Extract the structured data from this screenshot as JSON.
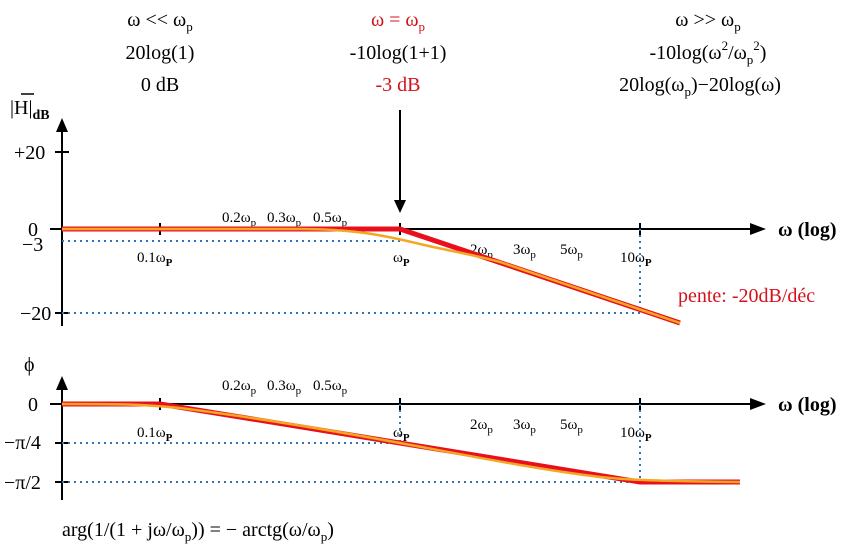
{
  "header": {
    "left": {
      "line1": "ω << ω",
      "line1_sub": "p",
      "line2": "20log(1)",
      "line3": "0 dB"
    },
    "mid": {
      "line1": "ω = ω",
      "line1_sub": "p",
      "line2": "-10log(1+1)",
      "line3": "-3 dB"
    },
    "right": {
      "line1": "ω >> ω",
      "line1_sub": "p",
      "line2_a": "-10log(ω",
      "line2_b": "2",
      "line2_c": "/ω",
      "line2_d": "p",
      "line2_e": "2",
      "line2_f": ")",
      "line3_a": "20log(ω",
      "line3_b": "p",
      "line3_c": ")−20log(ω)"
    }
  },
  "magnitude": {
    "ylabel": "|H|",
    "ylabel_sub": "dB",
    "x_axis_label": "ω (log)",
    "y_ticks": [
      "+20",
      "0",
      "−3",
      "−20"
    ],
    "x_ticks_above": [
      {
        "base": "0.2ω",
        "sub": "p"
      },
      {
        "base": "0.3ω",
        "sub": "p"
      },
      {
        "base": "0.5ω",
        "sub": "p"
      }
    ],
    "x_ticks_below": [
      {
        "base": "0.1ω",
        "sub": "P"
      },
      {
        "base": "ω",
        "sub": "P"
      },
      {
        "base": "2ω",
        "sub": "p"
      },
      {
        "base": "3ω",
        "sub": "p"
      },
      {
        "base": "5ω",
        "sub": "p"
      },
      {
        "base": "10ω",
        "sub": "P"
      }
    ],
    "slope_label": "pente: -20dB/déc"
  },
  "phase": {
    "ylabel": "ϕ",
    "x_axis_label": "ω (log)",
    "y_ticks": [
      "0",
      "−π/4",
      "−π/2"
    ],
    "x_ticks_above": [
      {
        "base": "0.2ω",
        "sub": "p"
      },
      {
        "base": "0.3ω",
        "sub": "p"
      },
      {
        "base": "0.5ω",
        "sub": "p"
      }
    ],
    "x_ticks_below": [
      {
        "base": "0.1ω",
        "sub": "P"
      },
      {
        "base": "ω",
        "sub": "P"
      },
      {
        "base": "2ω",
        "sub": "p"
      },
      {
        "base": "3ω",
        "sub": "p"
      },
      {
        "base": "5ω",
        "sub": "p"
      },
      {
        "base": "10ω",
        "sub": "P"
      }
    ],
    "formula": {
      "a": "arg(1/(1 + jω/ω",
      "b": "p",
      "c": ")) = − arctg(ω/ω",
      "d": "p",
      "e": ")"
    }
  },
  "colors": {
    "asymptote": "#e8101c",
    "real_curve": "#f5a623",
    "guide": "#2e75b6",
    "highlight": "#d4121b"
  }
}
